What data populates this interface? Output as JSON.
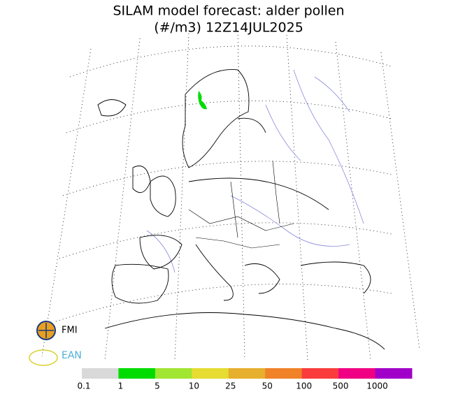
{
  "title": [
    "SILAM model forecast: alder pollen",
    "(#/m3) 12Z14JUL2025"
  ],
  "logos": [
    "FMI",
    "EAN"
  ],
  "colorbar": {
    "labels": [
      "0.1",
      "1",
      "5",
      "10",
      "25",
      "50",
      "100",
      "500",
      "1000"
    ],
    "colors": [
      "#d9d9d9",
      "#00dc00",
      "#a0e632",
      "#e6dc32",
      "#e6af2d",
      "#f08228",
      "#fa3c3c",
      "#f00082",
      "#a000c8"
    ]
  }
}
